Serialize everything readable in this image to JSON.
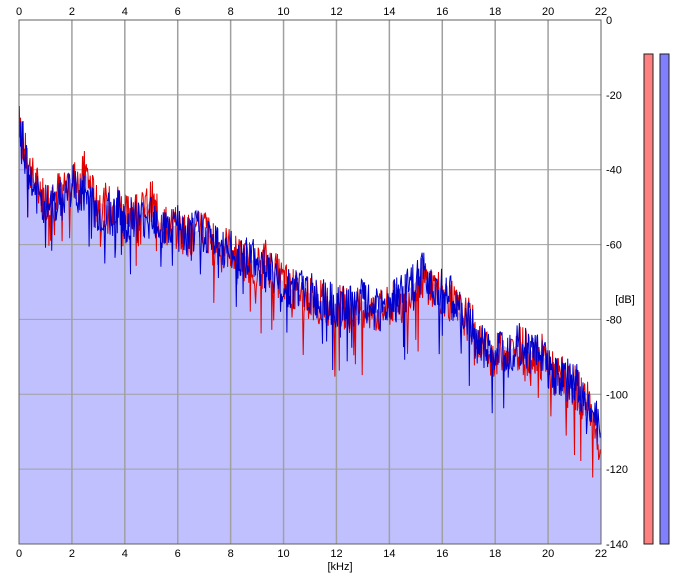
{
  "chart_data": {
    "type": "area",
    "xlabel": "[kHz]",
    "ylabel": "[dB]",
    "xlim": [
      0,
      22
    ],
    "ylim": [
      -140,
      0
    ],
    "x_ticks": [
      0,
      2,
      4,
      6,
      8,
      10,
      12,
      14,
      16,
      18,
      20,
      22
    ],
    "y_ticks": [
      0,
      -20,
      -40,
      -60,
      -80,
      -100,
      -120,
      -140
    ],
    "grid": true,
    "x_axis_top": true,
    "series": [
      {
        "color": "#e00000",
        "x": [
          0,
          0.2,
          0.5,
          0.8,
          1.0,
          1.3,
          1.6,
          2.0,
          2.3,
          2.5,
          2.8,
          3.1,
          3.5,
          3.8,
          4.0,
          4.3,
          4.6,
          5.0,
          5.3,
          5.6,
          6.0,
          6.3,
          6.6,
          7.0,
          7.3,
          7.6,
          8.0,
          8.3,
          8.6,
          9.0,
          9.3,
          9.6,
          10.0,
          10.3,
          10.6,
          11.0,
          11.3,
          11.6,
          12.0,
          12.3,
          12.6,
          13.0,
          13.3,
          13.6,
          14.0,
          14.3,
          14.6,
          15.0,
          15.3,
          15.6,
          16.0,
          16.3,
          16.6,
          17.0,
          17.3,
          17.6,
          18.0,
          18.3,
          18.6,
          19.0,
          19.3,
          19.6,
          20.0,
          20.3,
          20.6,
          21.0,
          21.3,
          21.6,
          22.0
        ],
        "values": [
          -24,
          -35,
          -42,
          -46,
          -48,
          -47,
          -45,
          -42,
          -44,
          -40,
          -47,
          -49,
          -50,
          -49,
          -53,
          -50,
          -52,
          -48,
          -54,
          -55,
          -56,
          -57,
          -58,
          -55,
          -60,
          -60,
          -61,
          -64,
          -64,
          -66,
          -64,
          -67,
          -70,
          -72,
          -73,
          -74,
          -75,
          -76,
          -76,
          -77,
          -78,
          -76,
          -78,
          -78,
          -77,
          -74,
          -75,
          -70,
          -69,
          -71,
          -73,
          -75,
          -78,
          -80,
          -84,
          -88,
          -90,
          -88,
          -89,
          -87,
          -90,
          -88,
          -92,
          -96,
          -95,
          -98,
          -101,
          -103,
          -116
        ]
      },
      {
        "color": "#0000cc",
        "x": [
          0,
          0.2,
          0.5,
          0.8,
          1.0,
          1.3,
          1.6,
          2.0,
          2.3,
          2.5,
          2.8,
          3.1,
          3.5,
          3.8,
          4.0,
          4.3,
          4.6,
          5.0,
          5.3,
          5.6,
          6.0,
          6.3,
          6.6,
          7.0,
          7.3,
          7.6,
          8.0,
          8.3,
          8.6,
          9.0,
          9.3,
          9.6,
          10.0,
          10.3,
          10.6,
          11.0,
          11.3,
          11.6,
          12.0,
          12.3,
          12.6,
          13.0,
          13.3,
          13.6,
          14.0,
          14.3,
          14.6,
          15.0,
          15.3,
          15.6,
          16.0,
          16.3,
          16.6,
          17.0,
          17.3,
          17.6,
          18.0,
          18.3,
          18.6,
          19.0,
          19.3,
          19.6,
          20.0,
          20.3,
          20.6,
          21.0,
          21.3,
          21.6,
          22.0
        ],
        "values": [
          -26,
          -37,
          -44,
          -48,
          -50,
          -49,
          -48,
          -44,
          -47,
          -46,
          -50,
          -52,
          -52,
          -51,
          -55,
          -52,
          -54,
          -50,
          -55,
          -56,
          -55,
          -58,
          -57,
          -56,
          -59,
          -61,
          -62,
          -64,
          -63,
          -65,
          -66,
          -68,
          -70,
          -72,
          -72,
          -73,
          -75,
          -75,
          -77,
          -77,
          -77,
          -75,
          -77,
          -78,
          -76,
          -73,
          -73,
          -70,
          -67,
          -70,
          -72,
          -74,
          -78,
          -80,
          -86,
          -88,
          -89,
          -87,
          -88,
          -86,
          -89,
          -87,
          -93,
          -95,
          -96,
          -97,
          -100,
          -104,
          -110
        ]
      }
    ],
    "level_meters": [
      {
        "color": "#ff8080"
      },
      {
        "color": "#8080ff"
      }
    ],
    "colors": {
      "fill": "#c0c0ff",
      "grid": "#a0a0a0",
      "plot_border": "#606060"
    }
  }
}
